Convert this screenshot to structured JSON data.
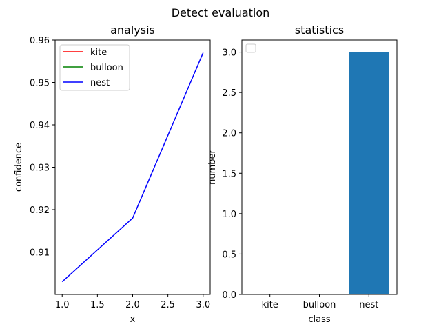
{
  "figure": {
    "suptitle": "Detect evaluation"
  },
  "chart_data": [
    {
      "type": "line",
      "title": "analysis",
      "xlabel": "x",
      "ylabel": "confidence",
      "xlim": [
        0.9,
        3.1
      ],
      "ylim": [
        0.9,
        0.96
      ],
      "xticks": [
        "1.0",
        "1.5",
        "2.0",
        "2.5",
        "3.0"
      ],
      "yticks": [
        "0.91",
        "0.92",
        "0.93",
        "0.94",
        "0.95",
        "0.96"
      ],
      "legend_position": "top-left",
      "series": [
        {
          "name": "kite",
          "color": "#ff0000",
          "x": [],
          "y": []
        },
        {
          "name": "bulloon",
          "color": "#008000",
          "x": [],
          "y": []
        },
        {
          "name": "nest",
          "color": "#0000ff",
          "x": [
            1,
            2,
            3
          ],
          "y": [
            0.903,
            0.918,
            0.957
          ]
        }
      ]
    },
    {
      "type": "bar",
      "title": "statistics",
      "xlabel": "class",
      "ylabel": "number",
      "categories": [
        "kite",
        "bulloon",
        "nest"
      ],
      "values": [
        0,
        0,
        3
      ],
      "color": "#1f77b4",
      "ylim": [
        0,
        3.15
      ],
      "yticks": [
        "0.0",
        "0.5",
        "1.0",
        "1.5",
        "2.0",
        "2.5",
        "3.0"
      ],
      "legend_position": "top-left",
      "legend_empty": true
    }
  ]
}
